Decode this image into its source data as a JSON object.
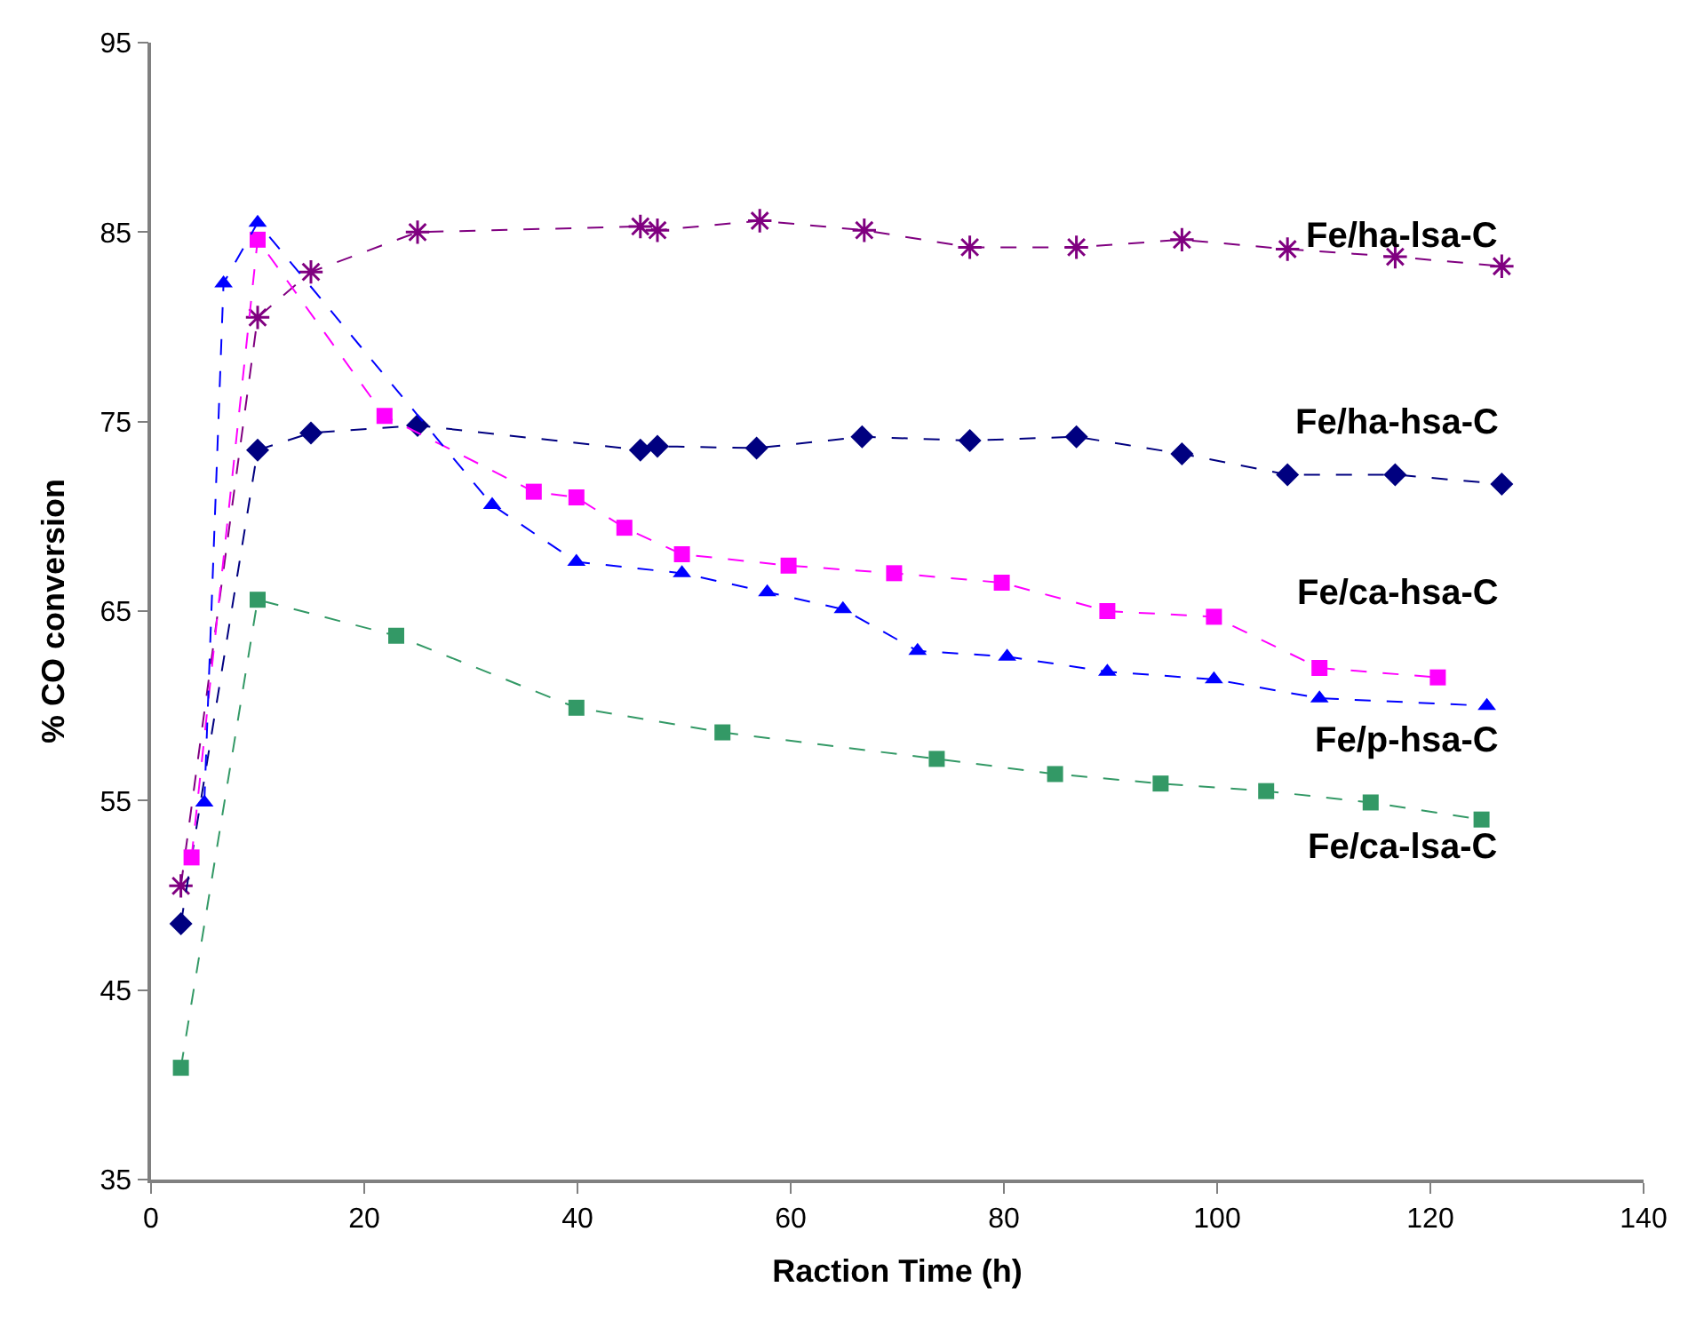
{
  "chart_data": {
    "type": "line",
    "xlabel": "Raction Time (h)",
    "ylabel": "% CO conversion",
    "xlim": [
      0,
      140
    ],
    "xticks": [
      0,
      20,
      40,
      60,
      80,
      100,
      120,
      140
    ],
    "ylim": [
      35,
      95
    ],
    "yticks": [
      35,
      45,
      55,
      65,
      75,
      85,
      95
    ],
    "grid": false,
    "legend": false,
    "line_style": "dashed",
    "series": [
      {
        "name": "Fe/ha-lsa-C",
        "color": "#800080",
        "marker": "cross",
        "x": [
          2.8,
          10,
          15,
          25,
          45.9,
          47.5,
          57.1,
          66.9,
          76.8,
          86.8,
          96.7,
          106.6,
          116.7,
          126.7
        ],
        "values": [
          50.5,
          80.5,
          82.9,
          85.0,
          85.3,
          85.1,
          85.6,
          85.1,
          84.2,
          84.2,
          84.6,
          84.1,
          83.7,
          83.2
        ]
      },
      {
        "name": "Fe/ha-hsa-C",
        "color": "#000080",
        "marker": "diamond",
        "x": [
          2.8,
          10,
          15,
          25,
          45.9,
          47.5,
          56.8,
          66.7,
          76.8,
          86.8,
          96.7,
          106.6,
          116.7,
          126.7
        ],
        "values": [
          48.5,
          73.5,
          74.4,
          74.8,
          73.5,
          73.7,
          73.6,
          74.2,
          74.0,
          74.2,
          73.3,
          72.2,
          72.2,
          71.7
        ]
      },
      {
        "name": "Fe/ca-hsa-C",
        "color": "#ff00ff",
        "marker": "square",
        "x": [
          3.8,
          10,
          21.9,
          35.9,
          39.9,
          44.4,
          49.8,
          59.8,
          69.7,
          79.8,
          89.7,
          99.7,
          109.6,
          120.7
        ],
        "values": [
          52.0,
          84.6,
          75.3,
          71.3,
          71.0,
          69.4,
          68.0,
          67.4,
          67.0,
          66.5,
          65.0,
          64.7,
          62.0,
          61.5
        ]
      },
      {
        "name": "Fe/p-hsa-C",
        "color": "#0000ff",
        "marker": "triangle",
        "x": [
          5,
          6.8,
          10,
          32,
          39.9,
          49.8,
          57.8,
          64.9,
          71.9,
          80.3,
          89.7,
          99.7,
          109.6,
          125.3
        ],
        "values": [
          54.9,
          82.3,
          85.5,
          70.6,
          67.6,
          67.0,
          66.0,
          65.1,
          62.9,
          62.6,
          61.8,
          61.4,
          60.4,
          60.0
        ]
      },
      {
        "name": "Fe/ca-lsa-C",
        "color": "#339966",
        "marker": "square",
        "x": [
          2.8,
          10,
          23,
          39.9,
          53.6,
          73.7,
          84.8,
          94.7,
          104.6,
          114.4,
          124.8
        ],
        "values": [
          40.9,
          65.6,
          63.7,
          59.9,
          58.6,
          57.2,
          56.4,
          55.9,
          55.5,
          54.9,
          54.0
        ]
      }
    ]
  }
}
